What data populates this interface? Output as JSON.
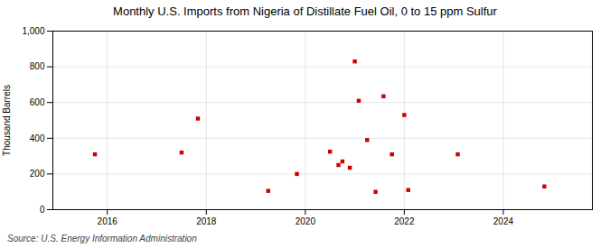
{
  "chart_data": {
    "type": "scatter",
    "title": "Monthly U.S. Imports from Nigeria of Distillate Fuel Oil, 0 to 15 ppm Sulfur",
    "ylabel": "Thousand Barrels",
    "source": "Source: U.S. Energy Information Administration",
    "x": [
      2015.75,
      2017.5,
      2017.83,
      2019.25,
      2019.83,
      2020.5,
      2020.67,
      2020.75,
      2020.9,
      2021.0,
      2021.08,
      2021.25,
      2021.42,
      2021.58,
      2021.75,
      2022.0,
      2022.08,
      2023.08,
      2024.83
    ],
    "values": [
      310,
      320,
      510,
      105,
      200,
      325,
      250,
      270,
      235,
      830,
      610,
      390,
      100,
      635,
      310,
      530,
      110,
      310,
      130
    ],
    "color": "#cc0000",
    "marker": "square",
    "xlim": [
      2014.9,
      2025.8
    ],
    "xticks": [
      2016,
      2018,
      2020,
      2022,
      2024
    ],
    "ylim": [
      0,
      1000
    ],
    "yticks": [
      0,
      200,
      400,
      600,
      800,
      {
        "value": 1000,
        "label": "1,000"
      }
    ],
    "grid": true
  }
}
